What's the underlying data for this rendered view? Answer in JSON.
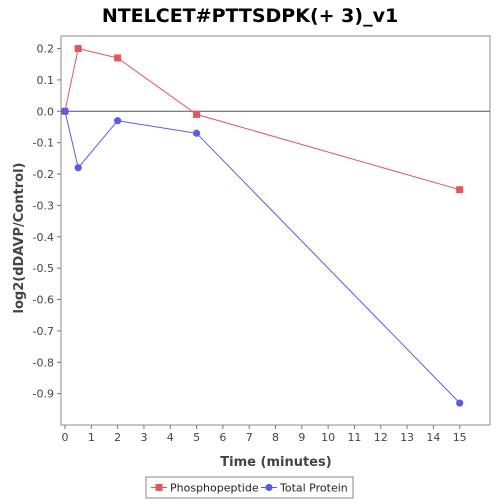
{
  "chart_data": {
    "type": "line",
    "title": "NTELCET#PTTSDPK(+ 3)_v1",
    "xlabel": "Time (minutes)",
    "ylabel": "log2(dDAVP/Control)",
    "xlim": [
      0,
      16
    ],
    "ylim": [
      -1.0,
      0.24
    ],
    "x_ticks": [
      0,
      1,
      2,
      3,
      4,
      5,
      6,
      7,
      8,
      9,
      10,
      11,
      12,
      13,
      14,
      15
    ],
    "y_ticks": [
      0.2,
      0.1,
      0.0,
      -0.1,
      -0.2,
      -0.3,
      -0.4,
      -0.5,
      -0.6,
      -0.7,
      -0.8,
      -0.9
    ],
    "y_tick_labels": [
      "0.2",
      "0.1",
      "0.0",
      "-0.1",
      "-0.2",
      "-0.3",
      "-0.4",
      "-0.5",
      "-0.6",
      "-0.7",
      "-0.8",
      "-0.9"
    ],
    "grid": false,
    "zero_line": true,
    "legend_position": "bottom",
    "series": [
      {
        "name": "Phosphopeptide",
        "color": "#e8545a",
        "marker": "square",
        "x": [
          0,
          0.5,
          2,
          5,
          15
        ],
        "y": [
          0.0,
          0.2,
          0.17,
          -0.01,
          -0.25
        ]
      },
      {
        "name": "Total Protein",
        "color": "#5b5bea",
        "marker": "circle",
        "x": [
          0,
          0.5,
          2,
          5,
          15
        ],
        "y": [
          0.0,
          -0.18,
          -0.03,
          -0.07,
          -0.93
        ]
      }
    ]
  }
}
